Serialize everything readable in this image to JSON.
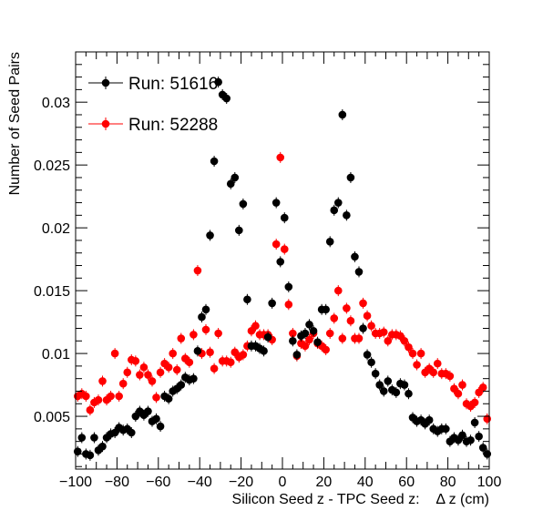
{
  "chart_data": {
    "type": "scatter",
    "title": "",
    "xlabel": "Silicon Seed z - TPC Seed z:    Δ z (cm)",
    "ylabel": "Number of Seed Pairs",
    "xlim": [
      -100,
      100
    ],
    "ylim": [
      0.0008,
      0.034
    ],
    "x_ticks": [
      {
        "value": -100,
        "label": "−100"
      },
      {
        "value": -80,
        "label": "−80"
      },
      {
        "value": -60,
        "label": "−60"
      },
      {
        "value": -40,
        "label": "−40"
      },
      {
        "value": -20,
        "label": "−20"
      },
      {
        "value": 0,
        "label": "0"
      },
      {
        "value": 20,
        "label": "20"
      },
      {
        "value": 40,
        "label": "40"
      },
      {
        "value": 60,
        "label": "60"
      },
      {
        "value": 80,
        "label": "80"
      },
      {
        "value": 100,
        "label": "100"
      }
    ],
    "y_ticks": [
      {
        "value": 0.005,
        "label": "0.005"
      },
      {
        "value": 0.01,
        "label": "0.01"
      },
      {
        "value": 0.015,
        "label": "0.015"
      },
      {
        "value": 0.02,
        "label": "0.02"
      },
      {
        "value": 0.025,
        "label": "0.025"
      },
      {
        "value": 0.03,
        "label": "0.03"
      }
    ],
    "legend_position": "top-left",
    "series": [
      {
        "name": "Run: 51616",
        "color": "#000000",
        "points": [
          [
            -99,
            0.0022
          ],
          [
            -97,
            0.0033
          ],
          [
            -95,
            0.002
          ],
          [
            -93,
            0.0019
          ],
          [
            -91,
            0.0033
          ],
          [
            -89,
            0.0023
          ],
          [
            -87,
            0.0026
          ],
          [
            -85,
            0.0033
          ],
          [
            -83,
            0.0036
          ],
          [
            -81,
            0.0037
          ],
          [
            -79,
            0.0041
          ],
          [
            -77,
            0.0039
          ],
          [
            -75,
            0.004
          ],
          [
            -73,
            0.0037
          ],
          [
            -71,
            0.005
          ],
          [
            -69,
            0.0054
          ],
          [
            -67,
            0.0051
          ],
          [
            -65,
            0.0054
          ],
          [
            -63,
            0.0046
          ],
          [
            -61,
            0.0048
          ],
          [
            -59,
            0.0042
          ],
          [
            -57,
            0.0066
          ],
          [
            -55,
            0.0064
          ],
          [
            -53,
            0.007
          ],
          [
            -51,
            0.0072
          ],
          [
            -49,
            0.0075
          ],
          [
            -47,
            0.0081
          ],
          [
            -45,
            0.0079
          ],
          [
            -43,
            0.008
          ],
          [
            -41,
            0.0102
          ],
          [
            -39,
            0.0129
          ],
          [
            -37,
            0.0135
          ],
          [
            -35,
            0.0194
          ],
          [
            -33,
            0.0253
          ],
          [
            -31,
            0.0316
          ],
          [
            -29,
            0.0306
          ],
          [
            -27,
            0.0303
          ],
          [
            -25,
            0.0235
          ],
          [
            -23,
            0.024
          ],
          [
            -21,
            0.0198
          ],
          [
            -19,
            0.0219
          ],
          [
            -17,
            0.0143
          ],
          [
            -15,
            0.0106
          ],
          [
            -13,
            0.0106
          ],
          [
            -11,
            0.0104
          ],
          [
            -9,
            0.0102
          ],
          [
            -7,
            0.0113
          ],
          [
            -5,
            0.014
          ],
          [
            -3,
            0.022
          ],
          [
            -1,
            0.0173
          ],
          [
            1,
            0.0208
          ],
          [
            3,
            0.0153
          ],
          [
            5,
            0.011
          ],
          [
            7,
            0.0099
          ],
          [
            9,
            0.0114
          ],
          [
            11,
            0.0116
          ],
          [
            13,
            0.0123
          ],
          [
            15,
            0.0118
          ],
          [
            17,
            0.0109
          ],
          [
            19,
            0.0135
          ],
          [
            21,
            0.0135
          ],
          [
            23,
            0.0189
          ],
          [
            25,
            0.0214
          ],
          [
            27,
            0.022
          ],
          [
            29,
            0.029
          ],
          [
            31,
            0.021
          ],
          [
            33,
            0.024
          ],
          [
            35,
            0.0177
          ],
          [
            37,
            0.0165
          ],
          [
            39,
            0.012
          ],
          [
            41,
            0.0099
          ],
          [
            43,
            0.0093
          ],
          [
            45,
            0.0084
          ],
          [
            47,
            0.0075
          ],
          [
            49,
            0.007
          ],
          [
            51,
            0.0078
          ],
          [
            53,
            0.0071
          ],
          [
            55,
            0.0069
          ],
          [
            57,
            0.0076
          ],
          [
            59,
            0.0075
          ],
          [
            61,
            0.0068
          ],
          [
            63,
            0.0049
          ],
          [
            65,
            0.0046
          ],
          [
            67,
            0.0047
          ],
          [
            69,
            0.0044
          ],
          [
            71,
            0.0047
          ],
          [
            73,
            0.004
          ],
          [
            75,
            0.0038
          ],
          [
            77,
            0.004
          ],
          [
            79,
            0.004
          ],
          [
            81,
            0.003
          ],
          [
            83,
            0.0033
          ],
          [
            85,
            0.0031
          ],
          [
            87,
            0.0035
          ],
          [
            89,
            0.003
          ],
          [
            91,
            0.0031
          ],
          [
            93,
            0.0045
          ],
          [
            95,
            0.0034
          ],
          [
            97,
            0.0025
          ],
          [
            99,
            0.002
          ]
        ]
      },
      {
        "name": "Run: 52288",
        "color": "#ff0000",
        "points": [
          [
            -99,
            0.0066
          ],
          [
            -97,
            0.0068
          ],
          [
            -95,
            0.0066
          ],
          [
            -93,
            0.0055
          ],
          [
            -91,
            0.0061
          ],
          [
            -89,
            0.0063
          ],
          [
            -87,
            0.0078
          ],
          [
            -85,
            0.0063
          ],
          [
            -83,
            0.0066
          ],
          [
            -81,
            0.01
          ],
          [
            -79,
            0.0066
          ],
          [
            -77,
            0.0076
          ],
          [
            -75,
            0.0085
          ],
          [
            -73,
            0.0095
          ],
          [
            -71,
            0.0094
          ],
          [
            -69,
            0.0083
          ],
          [
            -67,
            0.0089
          ],
          [
            -65,
            0.0083
          ],
          [
            -63,
            0.0078
          ],
          [
            -61,
            0.0065
          ],
          [
            -59,
            0.0085
          ],
          [
            -57,
            0.0092
          ],
          [
            -55,
            0.0089
          ],
          [
            -53,
            0.01
          ],
          [
            -51,
            0.0087
          ],
          [
            -49,
            0.0112
          ],
          [
            -47,
            0.0096
          ],
          [
            -45,
            0.0093
          ],
          [
            -43,
            0.0115
          ],
          [
            -41,
            0.0166
          ],
          [
            -39,
            0.01
          ],
          [
            -37,
            0.0119
          ],
          [
            -35,
            0.0101
          ],
          [
            -33,
            0.0088
          ],
          [
            -31,
            0.0116
          ],
          [
            -29,
            0.0094
          ],
          [
            -27,
            0.0094
          ],
          [
            -25,
            0.0093
          ],
          [
            -23,
            0.0101
          ],
          [
            -21,
            0.0097
          ],
          [
            -19,
            0.0099
          ],
          [
            -17,
            0.0106
          ],
          [
            -15,
            0.0118
          ],
          [
            -13,
            0.0122
          ],
          [
            -11,
            0.0115
          ],
          [
            -9,
            0.0115
          ],
          [
            -7,
            0.0115
          ],
          [
            -5,
            0.0111
          ],
          [
            -3,
            0.0187
          ],
          [
            -1,
            0.0256
          ],
          [
            1,
            0.0183
          ],
          [
            3,
            0.0139
          ],
          [
            5,
            0.0116
          ],
          [
            7,
            0.0098
          ],
          [
            9,
            0.0108
          ],
          [
            11,
            0.0106
          ],
          [
            13,
            0.0111
          ],
          [
            15,
            0.0116
          ],
          [
            17,
            0.0108
          ],
          [
            19,
            0.0106
          ],
          [
            21,
            0.0103
          ],
          [
            23,
            0.0116
          ],
          [
            25,
            0.0128
          ],
          [
            27,
            0.015
          ],
          [
            29,
            0.0112
          ],
          [
            31,
            0.0136
          ],
          [
            33,
            0.0126
          ],
          [
            35,
            0.0112
          ],
          [
            37,
            0.0112
          ],
          [
            39,
            0.014
          ],
          [
            41,
            0.013
          ],
          [
            43,
            0.0122
          ],
          [
            45,
            0.0116
          ],
          [
            47,
            0.0116
          ],
          [
            49,
            0.0117
          ],
          [
            51,
            0.011
          ],
          [
            53,
            0.0115
          ],
          [
            55,
            0.0115
          ],
          [
            57,
            0.0114
          ],
          [
            59,
            0.011
          ],
          [
            61,
            0.0105
          ],
          [
            63,
            0.01
          ],
          [
            65,
            0.0091
          ],
          [
            67,
            0.01
          ],
          [
            69,
            0.0085
          ],
          [
            71,
            0.0088
          ],
          [
            73,
            0.0085
          ],
          [
            75,
            0.0092
          ],
          [
            77,
            0.0084
          ],
          [
            79,
            0.0084
          ],
          [
            81,
            0.0082
          ],
          [
            83,
            0.0072
          ],
          [
            85,
            0.0068
          ],
          [
            87,
            0.0075
          ],
          [
            89,
            0.006
          ],
          [
            91,
            0.0058
          ],
          [
            93,
            0.0061
          ],
          [
            95,
            0.0069
          ],
          [
            97,
            0.0073
          ],
          [
            99,
            0.0048
          ]
        ]
      }
    ]
  }
}
